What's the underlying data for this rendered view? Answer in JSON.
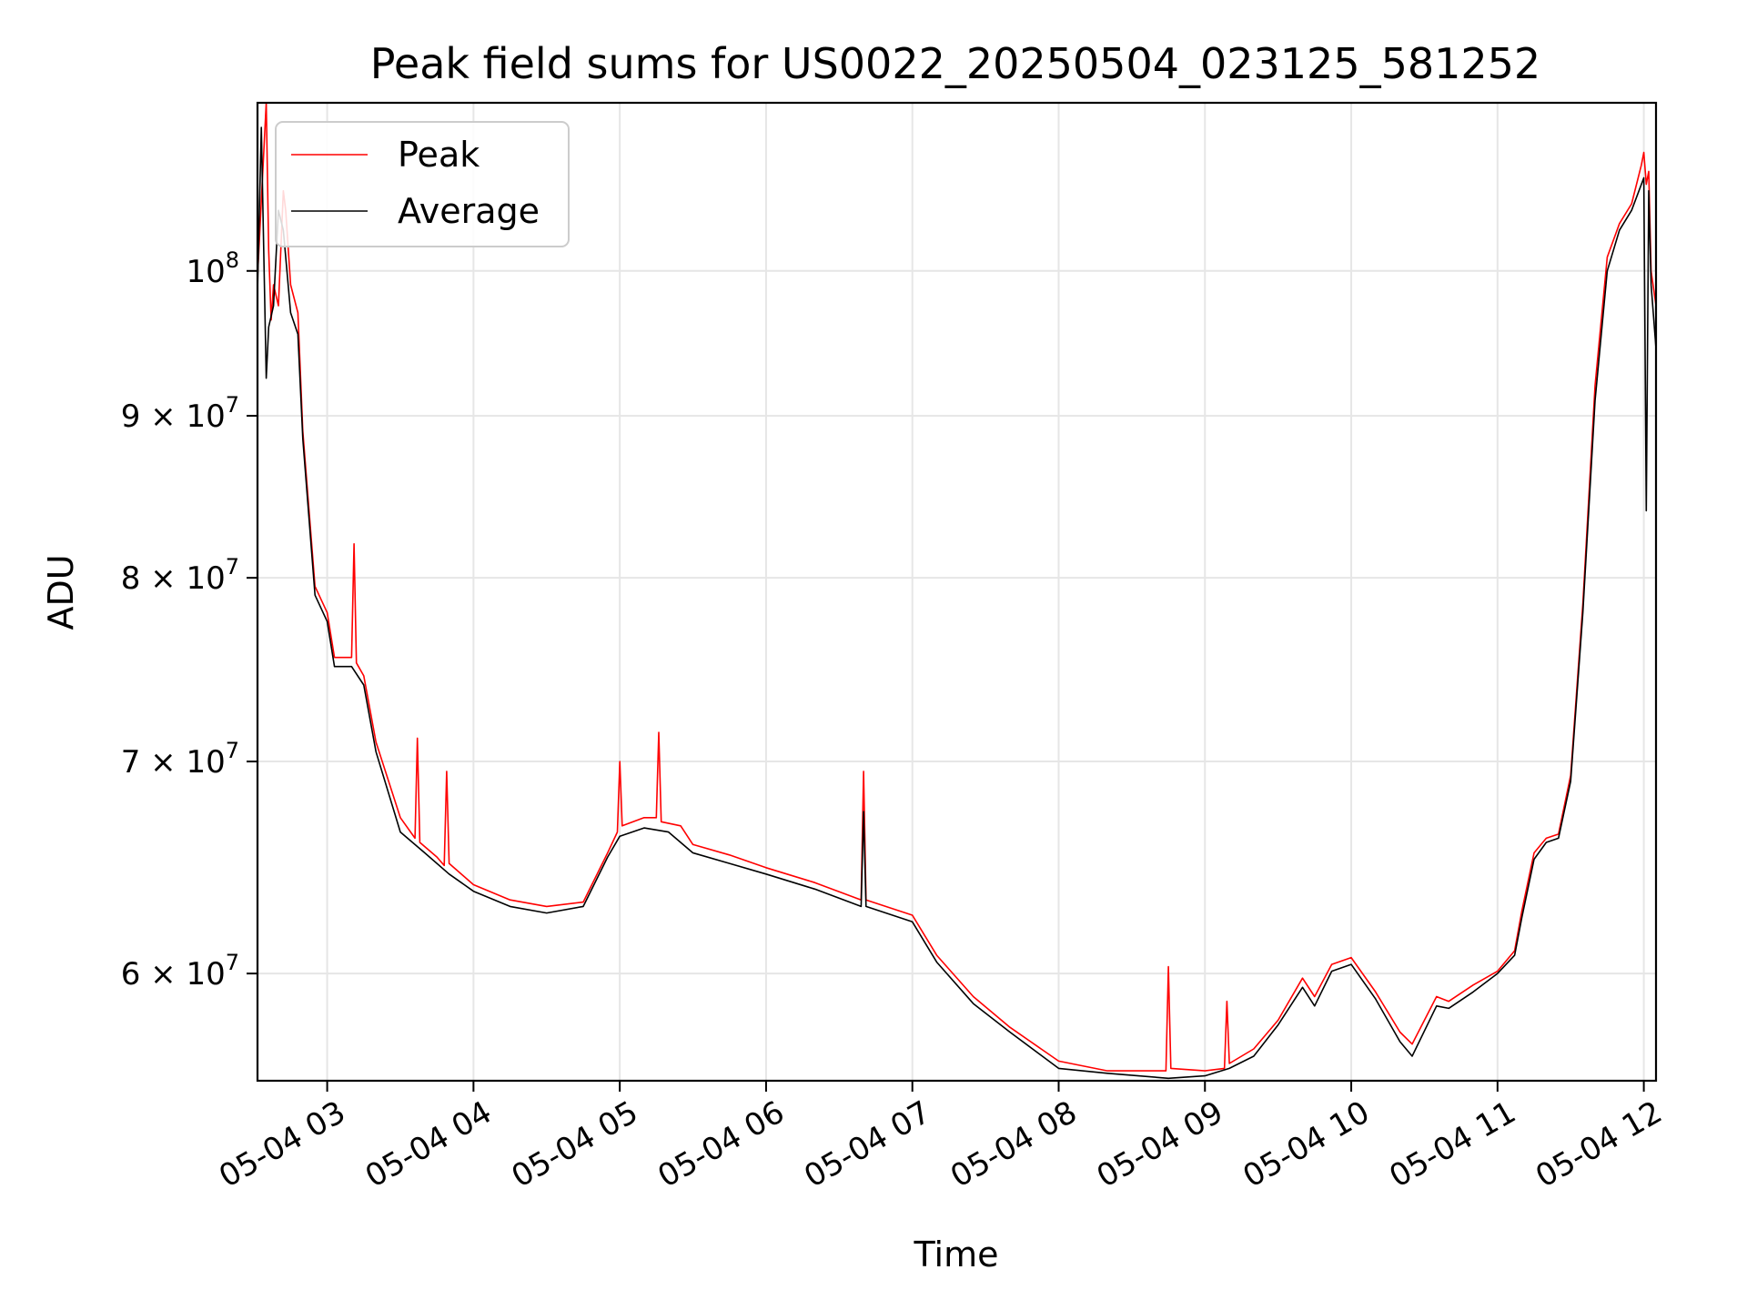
{
  "chart_data": {
    "type": "line",
    "title": "Peak field sums for US0022_20250504_023125_581252",
    "xlabel": "Time",
    "ylabel": "ADU",
    "y_scale": "log",
    "xlim": [
      "2025-05-04T02:31:25",
      "2025-05-04T12:05:00"
    ],
    "ylim": [
      55500000,
      113000000
    ],
    "grid": true,
    "legend_position": "top-left",
    "x_ticks": [
      {
        "t": "2025-05-04T03:00:00",
        "label": "05-04 03"
      },
      {
        "t": "2025-05-04T04:00:00",
        "label": "05-04 04"
      },
      {
        "t": "2025-05-04T05:00:00",
        "label": "05-04 05"
      },
      {
        "t": "2025-05-04T06:00:00",
        "label": "05-04 06"
      },
      {
        "t": "2025-05-04T07:00:00",
        "label": "05-04 07"
      },
      {
        "t": "2025-05-04T08:00:00",
        "label": "05-04 08"
      },
      {
        "t": "2025-05-04T09:00:00",
        "label": "05-04 09"
      },
      {
        "t": "2025-05-04T10:00:00",
        "label": "05-04 10"
      },
      {
        "t": "2025-05-04T11:00:00",
        "label": "05-04 11"
      },
      {
        "t": "2025-05-04T12:00:00",
        "label": "05-04 12"
      }
    ],
    "y_ticks": [
      {
        "value": 60000000,
        "base": "6 × 10",
        "exp": "7"
      },
      {
        "value": 70000000,
        "base": "7 × 10",
        "exp": "7"
      },
      {
        "value": 80000000,
        "base": "8 × 10",
        "exp": "7"
      },
      {
        "value": 90000000,
        "base": "9 × 10",
        "exp": "7"
      },
      {
        "value": 100000000,
        "base": "10",
        "exp": "8"
      }
    ],
    "series": [
      {
        "name": "Peak",
        "color": "#ff0000",
        "x": [
          "2025-05-04T02:31:25",
          "2025-05-04T02:35:00",
          "2025-05-04T02:36:00",
          "2025-05-04T02:37:00",
          "2025-05-04T02:38:00",
          "2025-05-04T02:40:00",
          "2025-05-04T02:42:00",
          "2025-05-04T02:43:00",
          "2025-05-04T02:45:00",
          "2025-05-04T02:48:00",
          "2025-05-04T02:50:00",
          "2025-05-04T02:55:00",
          "2025-05-04T03:00:00",
          "2025-05-04T03:03:00",
          "2025-05-04T03:10:00",
          "2025-05-04T03:11:00",
          "2025-05-04T03:12:00",
          "2025-05-04T03:15:00",
          "2025-05-04T03:20:00",
          "2025-05-04T03:30:00",
          "2025-05-04T03:36:00",
          "2025-05-04T03:37:00",
          "2025-05-04T03:38:00",
          "2025-05-04T03:45:00",
          "2025-05-04T03:48:00",
          "2025-05-04T03:49:00",
          "2025-05-04T03:50:00",
          "2025-05-04T04:00:00",
          "2025-05-04T04:15:00",
          "2025-05-04T04:30:00",
          "2025-05-04T04:45:00",
          "2025-05-04T04:55:00",
          "2025-05-04T04:59:00",
          "2025-05-04T05:00:00",
          "2025-05-04T05:01:00",
          "2025-05-04T05:10:00",
          "2025-05-04T05:15:00",
          "2025-05-04T05:16:00",
          "2025-05-04T05:17:00",
          "2025-05-04T05:25:00",
          "2025-05-04T05:30:00",
          "2025-05-04T05:45:00",
          "2025-05-04T06:00:00",
          "2025-05-04T06:20:00",
          "2025-05-04T06:39:00",
          "2025-05-04T06:40:00",
          "2025-05-04T06:41:00",
          "2025-05-04T07:00:00",
          "2025-05-04T07:10:00",
          "2025-05-04T07:25:00",
          "2025-05-04T07:40:00",
          "2025-05-04T08:00:00",
          "2025-05-04T08:20:00",
          "2025-05-04T08:44:00",
          "2025-05-04T08:45:00",
          "2025-05-04T08:46:00",
          "2025-05-04T09:00:00",
          "2025-05-04T09:08:00",
          "2025-05-04T09:09:00",
          "2025-05-04T09:10:00",
          "2025-05-04T09:20:00",
          "2025-05-04T09:30:00",
          "2025-05-04T09:40:00",
          "2025-05-04T09:45:00",
          "2025-05-04T09:52:00",
          "2025-05-04T10:00:00",
          "2025-05-04T10:10:00",
          "2025-05-04T10:20:00",
          "2025-05-04T10:25:00",
          "2025-05-04T10:35:00",
          "2025-05-04T10:40:00",
          "2025-05-04T10:50:00",
          "2025-05-04T11:00:00",
          "2025-05-04T11:07:00",
          "2025-05-04T11:10:00",
          "2025-05-04T11:15:00",
          "2025-05-04T11:20:00",
          "2025-05-04T11:25:00",
          "2025-05-04T11:30:00",
          "2025-05-04T11:35:00",
          "2025-05-04T11:40:00",
          "2025-05-04T11:45:00",
          "2025-05-04T11:50:00",
          "2025-05-04T11:55:00",
          "2025-05-04T11:59:00",
          "2025-05-04T12:00:00",
          "2025-05-04T12:01:00",
          "2025-05-04T12:02:00",
          "2025-05-04T12:03:00",
          "2025-05-04T12:05:00"
        ],
        "y": [
          99500000,
          113000000,
          101500000,
          96500000,
          99000000,
          97500000,
          106000000,
          104500000,
          99000000,
          97000000,
          89000000,
          79500000,
          78000000,
          75500000,
          75500000,
          82000000,
          75200000,
          74500000,
          71000000,
          67200000,
          66200000,
          71200000,
          66000000,
          65300000,
          64900000,
          69500000,
          65000000,
          64000000,
          63300000,
          63000000,
          63200000,
          65500000,
          66500000,
          70000000,
          66800000,
          67200000,
          67200000,
          71500000,
          67000000,
          66800000,
          65900000,
          65400000,
          64800000,
          64100000,
          63300000,
          69500000,
          63300000,
          62600000,
          60800000,
          59000000,
          57700000,
          56300000,
          55900000,
          55900000,
          60300000,
          56000000,
          55900000,
          56000000,
          58800000,
          56200000,
          56800000,
          58000000,
          59800000,
          59000000,
          60400000,
          60700000,
          59200000,
          57500000,
          57000000,
          59000000,
          58800000,
          59500000,
          60100000,
          61000000,
          62800000,
          65500000,
          66200000,
          66400000,
          69300000,
          78500000,
          92000000,
          101000000,
          103500000,
          105000000,
          108000000,
          109000000,
          106500000,
          107500000,
          100000000,
          97500000
        ]
      },
      {
        "name": "Average",
        "color": "#000000",
        "x": [
          "2025-05-04T02:31:25",
          "2025-05-04T02:33:00",
          "2025-05-04T02:35:00",
          "2025-05-04T02:36:00",
          "2025-05-04T02:38:00",
          "2025-05-04T02:40:00",
          "2025-05-04T02:42:00",
          "2025-05-04T02:45:00",
          "2025-05-04T02:48:00",
          "2025-05-04T02:50:00",
          "2025-05-04T02:55:00",
          "2025-05-04T03:00:00",
          "2025-05-04T03:03:00",
          "2025-05-04T03:10:00",
          "2025-05-04T03:15:00",
          "2025-05-04T03:20:00",
          "2025-05-04T03:30:00",
          "2025-05-04T03:40:00",
          "2025-05-04T03:50:00",
          "2025-05-04T04:00:00",
          "2025-05-04T04:15:00",
          "2025-05-04T04:30:00",
          "2025-05-04T04:45:00",
          "2025-05-04T04:55:00",
          "2025-05-04T05:00:00",
          "2025-05-04T05:10:00",
          "2025-05-04T05:20:00",
          "2025-05-04T05:30:00",
          "2025-05-04T05:45:00",
          "2025-05-04T06:00:00",
          "2025-05-04T06:20:00",
          "2025-05-04T06:39:00",
          "2025-05-04T06:40:00",
          "2025-05-04T06:41:00",
          "2025-05-04T07:00:00",
          "2025-05-04T07:10:00",
          "2025-05-04T07:25:00",
          "2025-05-04T07:40:00",
          "2025-05-04T08:00:00",
          "2025-05-04T08:20:00",
          "2025-05-04T08:45:00",
          "2025-05-04T09:00:00",
          "2025-05-04T09:10:00",
          "2025-05-04T09:20:00",
          "2025-05-04T09:30:00",
          "2025-05-04T09:40:00",
          "2025-05-04T09:45:00",
          "2025-05-04T09:52:00",
          "2025-05-04T10:00:00",
          "2025-05-04T10:10:00",
          "2025-05-04T10:20:00",
          "2025-05-04T10:25:00",
          "2025-05-04T10:35:00",
          "2025-05-04T10:40:00",
          "2025-05-04T10:50:00",
          "2025-05-04T11:00:00",
          "2025-05-04T11:07:00",
          "2025-05-04T11:10:00",
          "2025-05-04T11:15:00",
          "2025-05-04T11:20:00",
          "2025-05-04T11:25:00",
          "2025-05-04T11:30:00",
          "2025-05-04T11:35:00",
          "2025-05-04T11:40:00",
          "2025-05-04T11:45:00",
          "2025-05-04T11:50:00",
          "2025-05-04T11:55:00",
          "2025-05-04T12:00:00",
          "2025-05-04T12:01:00",
          "2025-05-04T12:02:00",
          "2025-05-04T12:03:00",
          "2025-05-04T12:05:00"
        ],
        "y": [
          98500000,
          111000000,
          92500000,
          96000000,
          97500000,
          104500000,
          103000000,
          97000000,
          95500000,
          88500000,
          79000000,
          77500000,
          75000000,
          75000000,
          74000000,
          70500000,
          66500000,
          65500000,
          64500000,
          63700000,
          63000000,
          62700000,
          63000000,
          65300000,
          66300000,
          66700000,
          66500000,
          65500000,
          65000000,
          64500000,
          63800000,
          63000000,
          67500000,
          63000000,
          62300000,
          60500000,
          58700000,
          57500000,
          56000000,
          55800000,
          55600000,
          55700000,
          56000000,
          56500000,
          57800000,
          59400000,
          58600000,
          60100000,
          60400000,
          58900000,
          57100000,
          56500000,
          58600000,
          58500000,
          59200000,
          60000000,
          60800000,
          62500000,
          65200000,
          66000000,
          66200000,
          69000000,
          78000000,
          91000000,
          100000000,
          103000000,
          104500000,
          107000000,
          84000000,
          106000000,
          99000000,
          94500000
        ]
      }
    ]
  },
  "legend": {
    "items": [
      {
        "label": "Peak",
        "color": "#ff0000"
      },
      {
        "label": "Average",
        "color": "#000000"
      }
    ]
  }
}
